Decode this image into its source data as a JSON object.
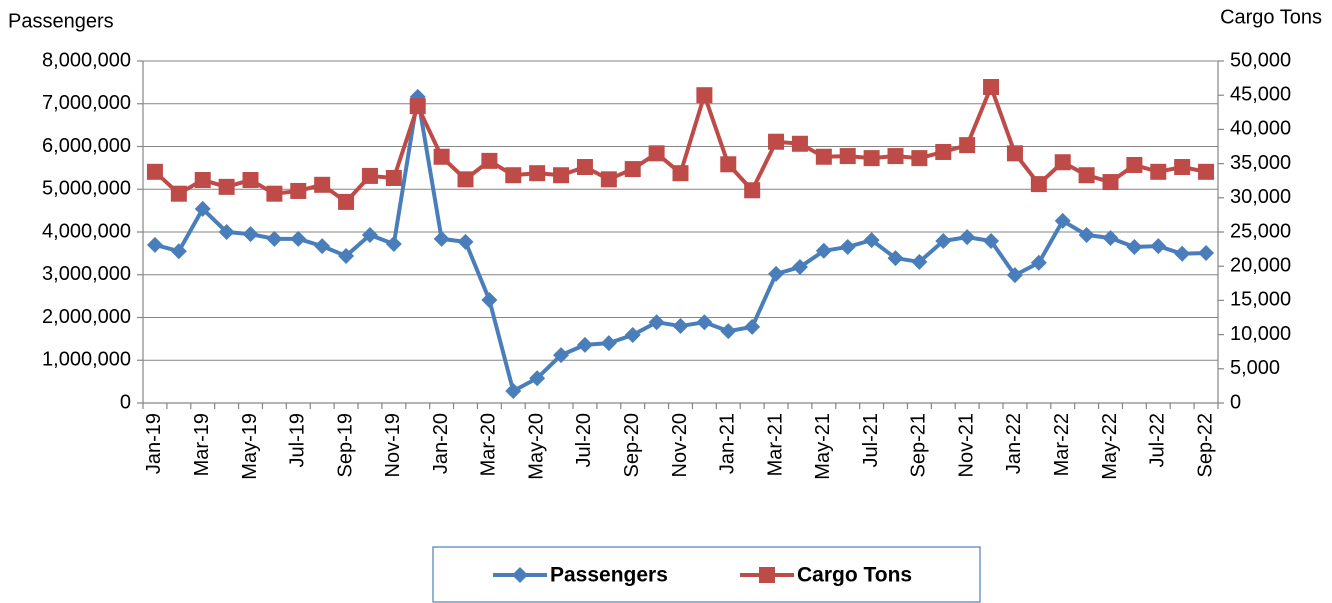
{
  "chart_data": {
    "type": "line",
    "y_label": "Passengers",
    "y2_label": "Cargo Tons",
    "categories": [
      "Jan-19",
      null,
      "Mar-19",
      null,
      "May-19",
      null,
      "Jul-19",
      null,
      "Sep-19",
      null,
      "Nov-19",
      null,
      "Jan-20",
      null,
      "Mar-20",
      null,
      "May-20",
      null,
      "Jul-20",
      null,
      "Sep-20",
      null,
      "Nov-20",
      null,
      "Jan-21",
      null,
      "Mar-21",
      null,
      "May-21",
      null,
      "Jul-21",
      null,
      "Sep-21",
      null,
      "Nov-21",
      null,
      "Jan-22",
      null,
      "Mar-22",
      null,
      "May-22",
      null,
      "Jul-22",
      null,
      "Sep-22"
    ],
    "series": [
      {
        "name": "Passengers",
        "color": "#4a7ebb",
        "marker": "diamond",
        "values": [
          3700000,
          3550000,
          4540000,
          4000000,
          3950000,
          3840000,
          3840000,
          3670000,
          3440000,
          3930000,
          3720000,
          7160000,
          3840000,
          3770000,
          2410000,
          280000,
          580000,
          1120000,
          1360000,
          1400000,
          1590000,
          1890000,
          1800000,
          1890000,
          1680000,
          1780000,
          3020000,
          3180000,
          3560000,
          3650000,
          3810000,
          3390000,
          3300000,
          3790000,
          3880000,
          3790000,
          2990000,
          3280000,
          4260000,
          3930000,
          3860000,
          3650000,
          3670000,
          3490000,
          3510000
        ]
      },
      {
        "name": "Cargo Tons",
        "color": "#be4b48",
        "marker": "square",
        "axis": "y2",
        "values": [
          33800,
          30600,
          32600,
          31600,
          32600,
          30600,
          31000,
          31900,
          29400,
          33200,
          32900,
          43400,
          36000,
          32700,
          35400,
          33300,
          33600,
          33300,
          34500,
          32700,
          34200,
          36500,
          33600,
          45000,
          34900,
          31100,
          38200,
          37900,
          36000,
          36100,
          35800,
          36100,
          35800,
          36700,
          37700,
          46200,
          36500,
          32000,
          35200,
          33300,
          32300,
          34800,
          33800,
          34500,
          33800
        ]
      }
    ],
    "ylim": [
      0,
      8000000
    ],
    "yticks": [
      0,
      {
        "value": 1000000,
        "label": "1,000,000"
      },
      {
        "value": 2000000,
        "label": "2,000,000"
      },
      {
        "value": 3000000,
        "label": "3,000,000"
      },
      {
        "value": 4000000,
        "label": "4,000,000"
      },
      {
        "value": 5000000,
        "label": "5,000,000"
      },
      {
        "value": 6000000,
        "label": "6,000,000"
      },
      {
        "value": 7000000,
        "label": "7,000,000"
      },
      {
        "value": 8000000,
        "label": "8,000,000"
      }
    ],
    "y2lim": [
      0,
      50000
    ],
    "y2ticks": [
      0,
      {
        "value": 5000,
        "label": "5,000"
      },
      {
        "value": 10000,
        "label": "10,000"
      },
      {
        "value": 15000,
        "label": "15,000"
      },
      {
        "value": 20000,
        "label": "20,000"
      },
      {
        "value": 25000,
        "label": "25,000"
      },
      {
        "value": 30000,
        "label": "30,000"
      },
      {
        "value": 35000,
        "label": "35,000"
      },
      {
        "value": 40000,
        "label": "40,000"
      },
      {
        "value": 45000,
        "label": "45,000"
      },
      {
        "value": 50000,
        "label": "50,000"
      }
    ],
    "grid": true,
    "legend": "bottom"
  }
}
